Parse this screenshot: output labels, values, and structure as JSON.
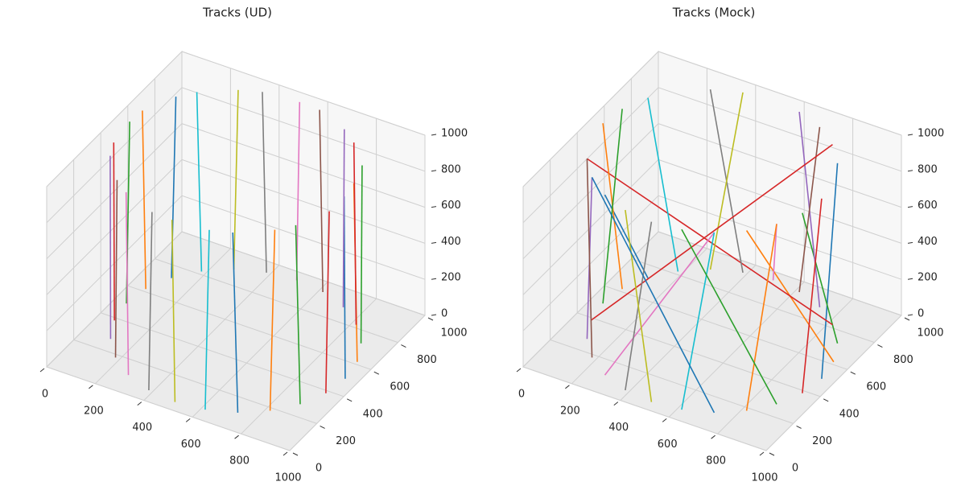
{
  "chart_data": [
    {
      "type": "line3d",
      "title": "Tracks (UD)",
      "xlim": [
        0,
        1000
      ],
      "ylim": [
        0,
        1000
      ],
      "zlim": [
        0,
        1000
      ],
      "xticks": [
        0,
        200,
        400,
        600,
        800,
        1000
      ],
      "yticks": [
        0,
        200,
        400,
        600,
        800,
        1000
      ],
      "zticks": [
        0,
        200,
        400,
        600,
        800,
        1000
      ],
      "grid": true,
      "series": [
        {
          "color": "#1f77b4",
          "x": [
            950,
            940
          ],
          "y": [
            500,
            510
          ],
          "z": [
            0,
            1000
          ]
        },
        {
          "color": "#ff7f0e",
          "x": [
            935,
            930
          ],
          "y": [
            616,
            600
          ],
          "z": [
            0,
            1000
          ]
        },
        {
          "color": "#2ca02c",
          "x": [
            890,
            900
          ],
          "y": [
            725,
            715
          ],
          "z": [
            0,
            1000
          ]
        },
        {
          "color": "#d62728",
          "x": [
            818,
            805
          ],
          "y": [
            818,
            825
          ],
          "z": [
            0,
            1000
          ]
        },
        {
          "color": "#9467bd",
          "x": [
            725,
            735
          ],
          "y": [
            890,
            880
          ],
          "z": [
            0,
            1000
          ]
        },
        {
          "color": "#8c564b",
          "x": [
            616,
            600
          ],
          "y": [
            935,
            940
          ],
          "z": [
            0,
            1000
          ]
        },
        {
          "color": "#e377c2",
          "x": [
            500,
            515
          ],
          "y": [
            950,
            945
          ],
          "z": [
            0,
            1000
          ]
        },
        {
          "color": "#7f7f7f",
          "x": [
            384,
            370
          ],
          "y": [
            935,
            930
          ],
          "z": [
            0,
            1000
          ]
        },
        {
          "color": "#bcbd22",
          "x": [
            275,
            290
          ],
          "y": [
            890,
            895
          ],
          "z": [
            0,
            1000
          ]
        },
        {
          "color": "#17becf",
          "x": [
            182,
            170
          ],
          "y": [
            818,
            805
          ],
          "z": [
            0,
            1000
          ]
        },
        {
          "color": "#1f77b4",
          "x": [
            110,
            120
          ],
          "y": [
            725,
            740
          ],
          "z": [
            0,
            1000
          ]
        },
        {
          "color": "#ff7f0e",
          "x": [
            65,
            60
          ],
          "y": [
            616,
            600
          ],
          "z": [
            0,
            1000
          ]
        },
        {
          "color": "#2ca02c",
          "x": [
            50,
            55
          ],
          "y": [
            500,
            515
          ],
          "z": [
            0,
            1000
          ]
        },
        {
          "color": "#d62728",
          "x": [
            65,
            70
          ],
          "y": [
            384,
            370
          ],
          "z": [
            0,
            1000
          ]
        },
        {
          "color": "#9467bd",
          "x": [
            110,
            100
          ],
          "y": [
            275,
            290
          ],
          "z": [
            0,
            1000
          ]
        },
        {
          "color": "#8c564b",
          "x": [
            182,
            195
          ],
          "y": [
            182,
            170
          ],
          "z": [
            0,
            1000
          ]
        },
        {
          "color": "#e377c2",
          "x": [
            275,
            260
          ],
          "y": [
            110,
            120
          ],
          "z": [
            0,
            1000
          ]
        },
        {
          "color": "#7f7f7f",
          "x": [
            384,
            400
          ],
          "y": [
            65,
            60
          ],
          "z": [
            0,
            1000
          ]
        },
        {
          "color": "#bcbd22",
          "x": [
            500,
            485
          ],
          "y": [
            50,
            55
          ],
          "z": [
            0,
            1000
          ]
        },
        {
          "color": "#17becf",
          "x": [
            616,
            630
          ],
          "y": [
            65,
            70
          ],
          "z": [
            0,
            1000
          ]
        },
        {
          "color": "#1f77b4",
          "x": [
            725,
            710
          ],
          "y": [
            110,
            100
          ],
          "z": [
            0,
            1000
          ]
        },
        {
          "color": "#ff7f0e",
          "x": [
            818,
            830
          ],
          "y": [
            182,
            195
          ],
          "z": [
            0,
            1000
          ]
        },
        {
          "color": "#2ca02c",
          "x": [
            890,
            880
          ],
          "y": [
            275,
            260
          ],
          "z": [
            0,
            1000
          ]
        },
        {
          "color": "#d62728",
          "x": [
            935,
            940
          ],
          "y": [
            384,
            400
          ],
          "z": [
            0,
            1000
          ]
        }
      ]
    },
    {
      "type": "line3d",
      "title": "Tracks (Mock)",
      "xlim": [
        0,
        1000
      ],
      "ylim": [
        0,
        1000
      ],
      "zlim": [
        0,
        1000
      ],
      "xticks": [
        0,
        200,
        400,
        600,
        800,
        1000
      ],
      "yticks": [
        0,
        200,
        400,
        600,
        800,
        1000
      ],
      "zticks": [
        0,
        200,
        400,
        600,
        800,
        1000
      ],
      "grid": true,
      "series": [
        {
          "color": "#1f77b4",
          "x": [
            950,
            890
          ],
          "y": [
            500,
            725
          ],
          "z": [
            0,
            1000
          ]
        },
        {
          "color": "#ff7f0e",
          "x": [
            935,
            818
          ],
          "y": [
            616,
            182
          ],
          "z": [
            0,
            1000
          ]
        },
        {
          "color": "#2ca02c",
          "x": [
            890,
            935
          ],
          "y": [
            725,
            384
          ],
          "z": [
            0,
            1000
          ]
        },
        {
          "color": "#d62728",
          "x": [
            818,
            110
          ],
          "y": [
            818,
            275
          ],
          "z": [
            0,
            1000
          ]
        },
        {
          "color": "#9467bd",
          "x": [
            725,
            616
          ],
          "y": [
            890,
            935
          ],
          "z": [
            0,
            1000
          ]
        },
        {
          "color": "#8c564b",
          "x": [
            616,
            725
          ],
          "y": [
            935,
            890
          ],
          "z": [
            0,
            1000
          ]
        },
        {
          "color": "#e377c2",
          "x": [
            500,
            890
          ],
          "y": [
            950,
            275
          ],
          "z": [
            0,
            1000
          ]
        },
        {
          "color": "#7f7f7f",
          "x": [
            384,
            275
          ],
          "y": [
            935,
            890
          ],
          "z": [
            0,
            1000
          ]
        },
        {
          "color": "#bcbd22",
          "x": [
            275,
            384
          ],
          "y": [
            890,
            935
          ],
          "z": [
            0,
            1000
          ]
        },
        {
          "color": "#17becf",
          "x": [
            182,
            110
          ],
          "y": [
            818,
            725
          ],
          "z": [
            0,
            1000
          ]
        },
        {
          "color": "#1f77b4",
          "x": [
            110,
            275
          ],
          "y": [
            725,
            110
          ],
          "z": [
            0,
            1000
          ]
        },
        {
          "color": "#ff7f0e",
          "x": [
            65,
            50
          ],
          "y": [
            616,
            500
          ],
          "z": [
            0,
            1000
          ]
        },
        {
          "color": "#2ca02c",
          "x": [
            50,
            65
          ],
          "y": [
            500,
            616
          ],
          "z": [
            0,
            1000
          ]
        },
        {
          "color": "#d62728",
          "x": [
            65,
            818
          ],
          "y": [
            384,
            818
          ],
          "z": [
            0,
            1000
          ]
        },
        {
          "color": "#9467bd",
          "x": [
            110,
            182
          ],
          "y": [
            275,
            182
          ],
          "z": [
            0,
            1000
          ]
        },
        {
          "color": "#8c564b",
          "x": [
            182,
            110
          ],
          "y": [
            182,
            275
          ],
          "z": [
            0,
            1000
          ]
        },
        {
          "color": "#e377c2",
          "x": [
            275,
            725
          ],
          "y": [
            110,
            110
          ],
          "z": [
            0,
            1000
          ]
        },
        {
          "color": "#7f7f7f",
          "x": [
            384,
            500
          ],
          "y": [
            65,
            50
          ],
          "z": [
            0,
            1000
          ]
        },
        {
          "color": "#bcbd22",
          "x": [
            500,
            384
          ],
          "y": [
            50,
            65
          ],
          "z": [
            0,
            1000
          ]
        },
        {
          "color": "#17becf",
          "x": [
            616,
            725
          ],
          "y": [
            65,
            110
          ],
          "z": [
            0,
            1000
          ]
        },
        {
          "color": "#1f77b4",
          "x": [
            725,
            182
          ],
          "y": [
            110,
            182
          ],
          "z": [
            0,
            1000
          ]
        },
        {
          "color": "#ff7f0e",
          "x": [
            818,
            890
          ],
          "y": [
            182,
            275
          ],
          "z": [
            0,
            1000
          ]
        },
        {
          "color": "#2ca02c",
          "x": [
            890,
            616
          ],
          "y": [
            275,
            65
          ],
          "z": [
            0,
            1000
          ]
        },
        {
          "color": "#d62728",
          "x": [
            935,
            950
          ],
          "y": [
            384,
            500
          ],
          "z": [
            0,
            1000
          ]
        }
      ]
    }
  ]
}
